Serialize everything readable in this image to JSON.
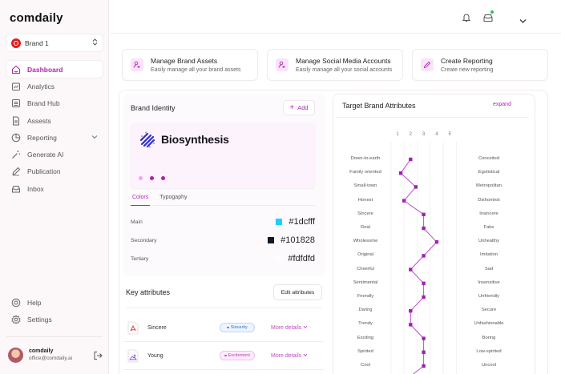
{
  "sidebar": {
    "logo": "comdaily",
    "brand_selector": {
      "label": "Brand 1",
      "icon": "brand-badge-icon"
    },
    "items": [
      {
        "label": "Dashboard",
        "icon": "home-icon",
        "active": true
      },
      {
        "label": "Analytics",
        "icon": "analytics-icon"
      },
      {
        "label": "Brand Hub",
        "icon": "brand-hub-icon"
      },
      {
        "label": "Assests",
        "icon": "document-icon"
      },
      {
        "label": "Reporting",
        "icon": "pie-chart-icon",
        "has_submenu": true
      },
      {
        "label": "Generate AI",
        "icon": "magic-wand-icon"
      },
      {
        "label": "Publication",
        "icon": "pen-icon"
      },
      {
        "label": "Inbox",
        "icon": "inbox-icon"
      }
    ],
    "bottom_items": [
      {
        "label": "Help",
        "icon": "help-icon"
      },
      {
        "label": "Settings",
        "icon": "gear-icon"
      }
    ],
    "user": {
      "name": "comdaily",
      "email": "office@comdaily.ai"
    }
  },
  "topbar": {
    "icons": [
      "bell-icon",
      "inbox-icon",
      "chevron-down-icon"
    ],
    "inbox_badge_color": "#22c55e"
  },
  "quick_actions": [
    {
      "title": "Manage Brand Assets",
      "subtitle": "Easily manage all your brand assets",
      "icon": "user-add-icon"
    },
    {
      "title": "Manage Social Media Accounts",
      "subtitle": "Easily manage all your social accounts",
      "icon": "user-add-icon"
    },
    {
      "title": "Create Reporting",
      "subtitle": "Create new reporting",
      "icon": "pen-icon"
    }
  ],
  "brand_identity": {
    "title": "Brand Identity",
    "add_label": "Add",
    "brand_name": "Biosynthesis",
    "carousel_dots": [
      "#f0a6f0",
      "#b01fb0",
      "#b01fb0"
    ],
    "tabs": [
      {
        "label": "Colors",
        "active": true
      },
      {
        "label": "Typogaphy"
      }
    ],
    "colors": [
      {
        "label": "Main",
        "hex": "#1dcfff"
      },
      {
        "label": "Secondary",
        "hex": "#101828"
      },
      {
        "label": "Tertiary",
        "hex": "#fdfdfd"
      }
    ]
  },
  "key_attributes": {
    "title": "Key attributes",
    "edit_label": "Edit attributes",
    "rows": [
      {
        "name": "Sincere",
        "tag": "Sincerity",
        "tag_color": "#3b82f6",
        "more": "More details"
      },
      {
        "name": "Young",
        "tag": "Excitement",
        "tag_color": "#d63bd6",
        "more": "More details"
      }
    ]
  },
  "target_brand_attributes": {
    "title": "Target Brand Attributes",
    "expand_label": "expand"
  },
  "chart_data": {
    "type": "line",
    "title": "Target Brand Attributes",
    "x_ticks": [
      1,
      2,
      3,
      4,
      5
    ],
    "xlim": [
      1,
      5
    ],
    "orientation": "horizontal-profile",
    "left_labels": [
      "Down-to-earth",
      "Family oriented",
      "Small-town",
      "Honest",
      "Sincere",
      "Real",
      "Wholesome",
      "Original",
      "Cheerful",
      "Sentimental",
      "Friendly",
      "Daring",
      "Trendy",
      "Exciting",
      "Spirited",
      "Cool"
    ],
    "right_labels": [
      "Conceited",
      "Egotistical",
      "Metropolitan",
      "Dishontest",
      "Insincere",
      "Fake",
      "Unhealthy",
      "Imitation",
      "Sad",
      "Insensitive",
      "Unfriendly",
      "Secure",
      "Unfashionable",
      "Boring",
      "Low-spirited",
      "Uncool"
    ],
    "values": [
      2,
      1.25,
      2.4,
      1.5,
      3,
      3,
      4,
      3,
      2,
      3,
      3,
      2,
      2,
      3,
      3,
      3
    ],
    "line_color": "#a020b0",
    "grid": true
  }
}
